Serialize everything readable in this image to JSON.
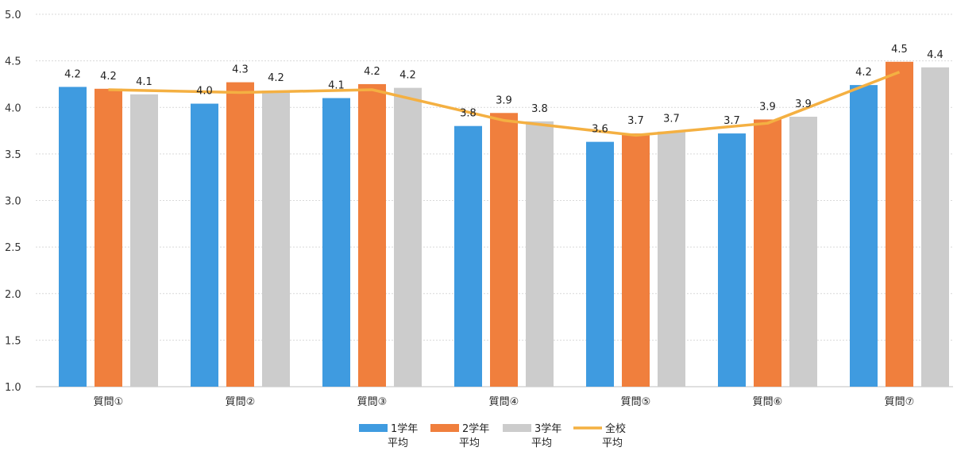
{
  "chart_data": {
    "type": "bar",
    "categories": [
      "質問①",
      "質問②",
      "質問③",
      "質問④",
      "質問⑤",
      "質問⑥",
      "質問⑦"
    ],
    "series": [
      {
        "name": "1学年\n平均",
        "kind": "bar",
        "color": "#3f9be0",
        "values": [
          4.22,
          4.04,
          4.1,
          3.8,
          3.63,
          3.72,
          4.24
        ],
        "labels": [
          "4.2",
          "4.0",
          "4.1",
          "3.8",
          "3.6",
          "3.7",
          "4.2"
        ]
      },
      {
        "name": "2学年\n平均",
        "kind": "bar",
        "color": "#f07f3d",
        "values": [
          4.2,
          4.27,
          4.25,
          3.94,
          3.72,
          3.87,
          4.49
        ],
        "labels": [
          "4.2",
          "4.3",
          "4.2",
          "3.9",
          "3.7",
          "3.9",
          "4.5"
        ]
      },
      {
        "name": "3学年\n平均",
        "kind": "bar",
        "color": "#cccccc",
        "values": [
          4.14,
          4.18,
          4.21,
          3.85,
          3.74,
          3.9,
          4.43
        ],
        "labels": [
          "4.1",
          "4.2",
          "4.2",
          "3.8",
          "3.7",
          "3.9",
          "4.4"
        ]
      },
      {
        "name": "全校\n平均",
        "kind": "line",
        "color": "#f4b042",
        "values": [
          4.19,
          4.16,
          4.19,
          3.86,
          3.7,
          3.83,
          4.38
        ]
      }
    ],
    "ylim": [
      1.0,
      5.0
    ],
    "yticks": [
      "1.0",
      "1.5",
      "2.0",
      "2.5",
      "3.0",
      "3.5",
      "4.0",
      "4.5",
      "5.0"
    ],
    "grid": true,
    "legend": "bottom"
  }
}
